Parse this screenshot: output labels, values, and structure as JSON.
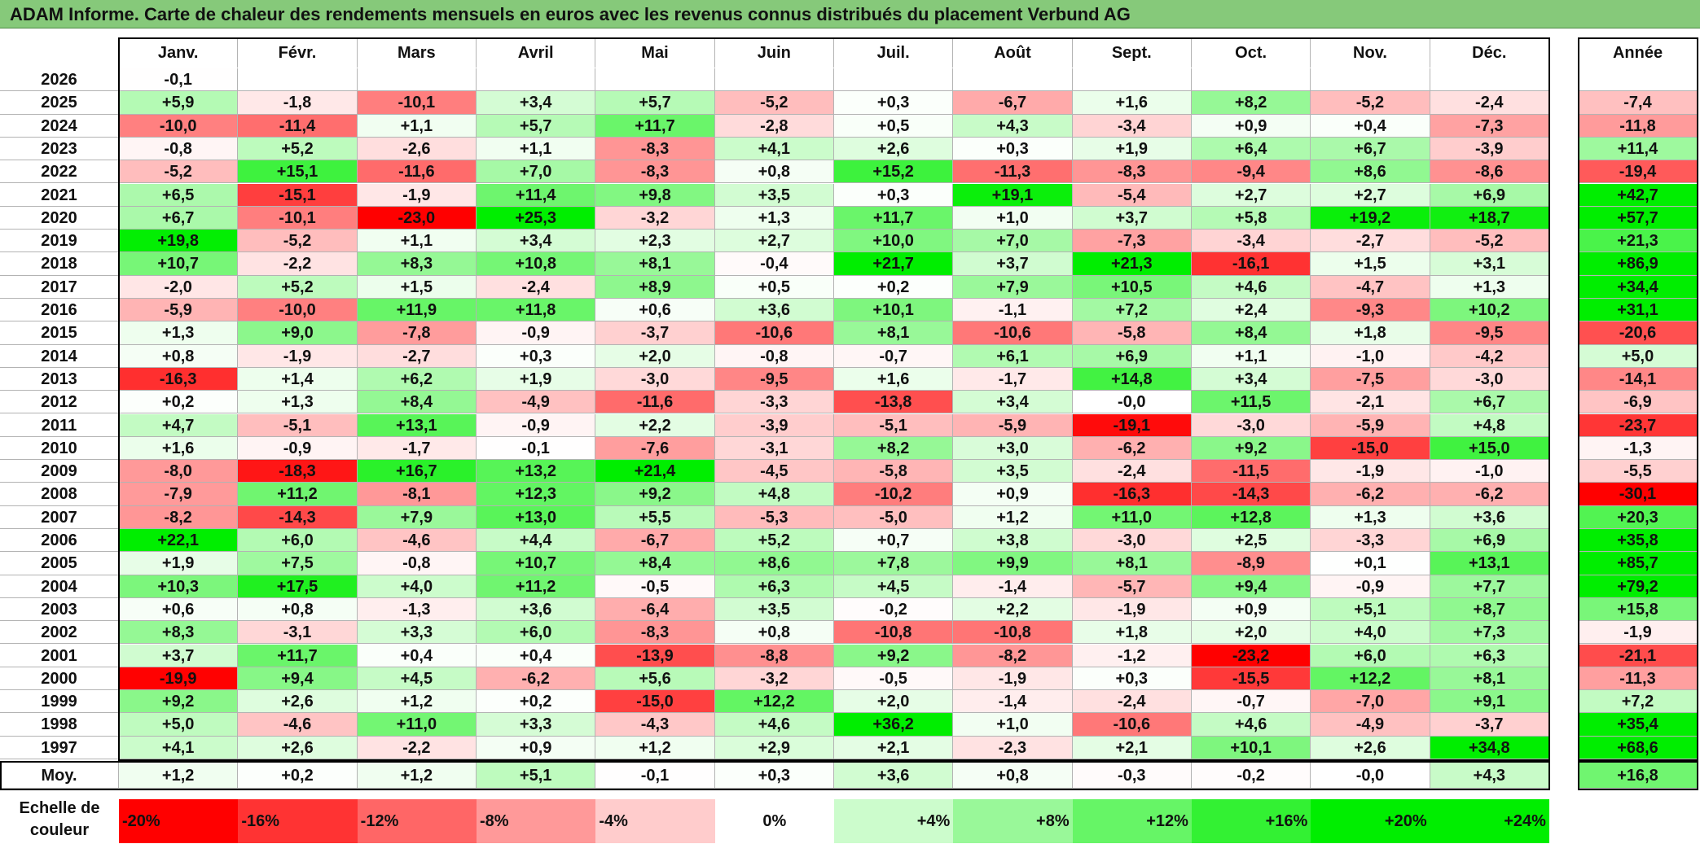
{
  "title": "ADAM Informe. Carte de chaleur des rendements mensuels en euros avec les revenus connus distribués du placement Verbund AG",
  "chart_data": {
    "type": "heatmap",
    "months": [
      "Janv.",
      "Févr.",
      "Mars",
      "Avril",
      "Mai",
      "Juin",
      "Juil.",
      "Août",
      "Sept.",
      "Oct.",
      "Nov.",
      "Déc."
    ],
    "year_header": "Année",
    "average_label": "Moy.",
    "rows": [
      {
        "year": "2026",
        "months": [
          "-0,1",
          "",
          "",
          "",
          "",
          "",
          "",
          "",
          "",
          "",
          "",
          ""
        ],
        "annual": ""
      },
      {
        "year": "2025",
        "months": [
          "+5,9",
          "-1,8",
          "-10,1",
          "+3,4",
          "+5,7",
          "-5,2",
          "+0,3",
          "-6,7",
          "+1,6",
          "+8,2",
          "-5,2",
          "-2,4"
        ],
        "annual": "-7,4"
      },
      {
        "year": "2024",
        "months": [
          "-10,0",
          "-11,4",
          "+1,1",
          "+5,7",
          "+11,7",
          "-2,8",
          "+0,5",
          "+4,3",
          "-3,4",
          "+0,9",
          "+0,4",
          "-7,3"
        ],
        "annual": "-11,8"
      },
      {
        "year": "2023",
        "months": [
          "-0,8",
          "+5,2",
          "-2,6",
          "+1,1",
          "-8,3",
          "+4,1",
          "+2,6",
          "+0,3",
          "+1,9",
          "+6,4",
          "+6,7",
          "-3,9"
        ],
        "annual": "+11,4"
      },
      {
        "year": "2022",
        "months": [
          "-5,2",
          "+15,1",
          "-11,6",
          "+7,0",
          "-8,3",
          "+0,8",
          "+15,2",
          "-11,3",
          "-8,3",
          "-9,4",
          "+8,6",
          "-8,6"
        ],
        "annual": "-19,4"
      },
      {
        "year": "2021",
        "months": [
          "+6,5",
          "-15,1",
          "-1,9",
          "+11,4",
          "+9,8",
          "+3,5",
          "+0,3",
          "+19,1",
          "-5,4",
          "+2,7",
          "+2,7",
          "+6,9"
        ],
        "annual": "+42,7"
      },
      {
        "year": "2020",
        "months": [
          "+6,7",
          "-10,1",
          "-23,0",
          "+25,3",
          "-3,2",
          "+1,3",
          "+11,7",
          "+1,0",
          "+3,7",
          "+5,8",
          "+19,2",
          "+18,7"
        ],
        "annual": "+57,7"
      },
      {
        "year": "2019",
        "months": [
          "+19,8",
          "-5,2",
          "+1,1",
          "+3,4",
          "+2,3",
          "+2,7",
          "+10,0",
          "+7,0",
          "-7,3",
          "-3,4",
          "-2,7",
          "-5,2"
        ],
        "annual": "+21,3"
      },
      {
        "year": "2018",
        "months": [
          "+10,7",
          "-2,2",
          "+8,3",
          "+10,8",
          "+8,1",
          "-0,4",
          "+21,7",
          "+3,7",
          "+21,3",
          "-16,1",
          "+1,5",
          "+3,1"
        ],
        "annual": "+86,9"
      },
      {
        "year": "2017",
        "months": [
          "-2,0",
          "+5,2",
          "+1,5",
          "-2,4",
          "+8,9",
          "+0,5",
          "+0,2",
          "+7,9",
          "+10,5",
          "+4,6",
          "-4,7",
          "+1,3"
        ],
        "annual": "+34,4"
      },
      {
        "year": "2016",
        "months": [
          "-5,9",
          "-10,0",
          "+11,9",
          "+11,8",
          "+0,6",
          "+3,6",
          "+10,1",
          "-1,1",
          "+7,2",
          "+2,4",
          "-9,3",
          "+10,2"
        ],
        "annual": "+31,1"
      },
      {
        "year": "2015",
        "months": [
          "+1,3",
          "+9,0",
          "-7,8",
          "-0,9",
          "-3,7",
          "-10,6",
          "+8,1",
          "-10,6",
          "-5,8",
          "+8,4",
          "+1,8",
          "-9,5"
        ],
        "annual": "-20,6"
      },
      {
        "year": "2014",
        "months": [
          "+0,8",
          "-1,9",
          "-2,7",
          "+0,3",
          "+2,0",
          "-0,8",
          "-0,7",
          "+6,1",
          "+6,9",
          "+1,1",
          "-1,0",
          "-4,2"
        ],
        "annual": "+5,0"
      },
      {
        "year": "2013",
        "months": [
          "-16,3",
          "+1,4",
          "+6,2",
          "+1,9",
          "-3,0",
          "-9,5",
          "+1,6",
          "-1,7",
          "+14,8",
          "+3,4",
          "-7,5",
          "-3,0"
        ],
        "annual": "-14,1"
      },
      {
        "year": "2012",
        "months": [
          "+0,2",
          "+1,3",
          "+8,4",
          "-4,9",
          "-11,6",
          "-3,3",
          "-13,8",
          "+3,4",
          "-0,0",
          "+11,5",
          "-2,1",
          "+6,7"
        ],
        "annual": "-6,9"
      },
      {
        "year": "2011",
        "months": [
          "+4,7",
          "-5,1",
          "+13,1",
          "-0,9",
          "+2,2",
          "-3,9",
          "-5,1",
          "-5,9",
          "-19,1",
          "-3,0",
          "-5,9",
          "+4,8"
        ],
        "annual": "-23,7"
      },
      {
        "year": "2010",
        "months": [
          "+1,6",
          "-0,9",
          "-1,7",
          "-0,1",
          "-7,6",
          "-3,1",
          "+8,2",
          "+3,0",
          "-6,2",
          "+9,2",
          "-15,0",
          "+15,0"
        ],
        "annual": "-1,3"
      },
      {
        "year": "2009",
        "months": [
          "-8,0",
          "-18,3",
          "+16,7",
          "+13,2",
          "+21,4",
          "-4,5",
          "-5,8",
          "+3,5",
          "-2,4",
          "-11,5",
          "-1,9",
          "-1,0"
        ],
        "annual": "-5,5"
      },
      {
        "year": "2008",
        "months": [
          "-7,9",
          "+11,2",
          "-8,1",
          "+12,3",
          "+9,2",
          "+4,8",
          "-10,2",
          "+0,9",
          "-16,3",
          "-14,3",
          "-6,2",
          "-6,2"
        ],
        "annual": "-30,1"
      },
      {
        "year": "2007",
        "months": [
          "-8,2",
          "-14,3",
          "+7,9",
          "+13,0",
          "+5,5",
          "-5,3",
          "-5,0",
          "+1,2",
          "+11,0",
          "+12,8",
          "+1,3",
          "+3,6"
        ],
        "annual": "+20,3"
      },
      {
        "year": "2006",
        "months": [
          "+22,1",
          "+6,0",
          "-4,6",
          "+4,4",
          "-6,7",
          "+5,2",
          "+0,7",
          "+3,8",
          "-3,0",
          "+2,5",
          "-3,3",
          "+6,9"
        ],
        "annual": "+35,8"
      },
      {
        "year": "2005",
        "months": [
          "+1,9",
          "+7,5",
          "-0,8",
          "+10,7",
          "+8,4",
          "+8,6",
          "+7,8",
          "+9,9",
          "+8,1",
          "-8,9",
          "+0,1",
          "+13,1"
        ],
        "annual": "+85,7"
      },
      {
        "year": "2004",
        "months": [
          "+10,3",
          "+17,5",
          "+4,0",
          "+11,2",
          "-0,5",
          "+6,3",
          "+4,5",
          "-1,4",
          "-5,7",
          "+9,4",
          "-0,9",
          "+7,7"
        ],
        "annual": "+79,2"
      },
      {
        "year": "2003",
        "months": [
          "+0,6",
          "+0,8",
          "-1,3",
          "+3,6",
          "-6,4",
          "+3,5",
          "-0,2",
          "+2,2",
          "-1,9",
          "+0,9",
          "+5,1",
          "+8,7"
        ],
        "annual": "+15,8"
      },
      {
        "year": "2002",
        "months": [
          "+8,3",
          "-3,1",
          "+3,3",
          "+6,0",
          "-8,3",
          "+0,8",
          "-10,8",
          "-10,8",
          "+1,8",
          "+2,0",
          "+4,0",
          "+7,3"
        ],
        "annual": "-1,9"
      },
      {
        "year": "2001",
        "months": [
          "+3,7",
          "+11,7",
          "+0,4",
          "+0,4",
          "-13,9",
          "-8,8",
          "+9,2",
          "-8,2",
          "-1,2",
          "-23,2",
          "+6,0",
          "+6,3"
        ],
        "annual": "-21,1"
      },
      {
        "year": "2000",
        "months": [
          "-19,9",
          "+9,4",
          "+4,5",
          "-6,2",
          "+5,6",
          "-3,2",
          "-0,5",
          "-1,9",
          "+0,3",
          "-15,5",
          "+12,2",
          "+8,1"
        ],
        "annual": "-11,3"
      },
      {
        "year": "1999",
        "months": [
          "+9,2",
          "+2,6",
          "+1,2",
          "+0,2",
          "-15,0",
          "+12,2",
          "+2,0",
          "-1,4",
          "-2,4",
          "-0,7",
          "-7,0",
          "+9,1"
        ],
        "annual": "+7,2"
      },
      {
        "year": "1998",
        "months": [
          "+5,0",
          "-4,6",
          "+11,0",
          "+3,3",
          "-4,3",
          "+4,6",
          "+36,2",
          "+1,0",
          "-10,6",
          "+4,6",
          "-4,9",
          "-3,7"
        ],
        "annual": "+35,4"
      },
      {
        "year": "1997",
        "months": [
          "+4,1",
          "+2,6",
          "-2,2",
          "+0,9",
          "+1,2",
          "+2,9",
          "+2,1",
          "-2,3",
          "+2,1",
          "+10,1",
          "+2,6",
          "+34,8"
        ],
        "annual": "+68,6"
      }
    ],
    "averages": {
      "months": [
        "+1,2",
        "+0,2",
        "+1,2",
        "+5,1",
        "-0,1",
        "+0,3",
        "+3,6",
        "+0,8",
        "-0,3",
        "-0,2",
        "-0,0",
        "+4,3"
      ],
      "annual": "+16,8"
    },
    "color_scale": {
      "label": "Echelle de couleur",
      "steps": [
        "-20%",
        "-16%",
        "-12%",
        "-8%",
        "-4%",
        "0%",
        "+4%",
        "+8%",
        "+12%",
        "+16%",
        "+20%",
        "+24%"
      ],
      "negative_color": "#ff0000",
      "neutral_color": "#ffffff",
      "positive_color": "#00ee00",
      "monthly_saturation": 20,
      "annual_saturation": 30
    }
  }
}
